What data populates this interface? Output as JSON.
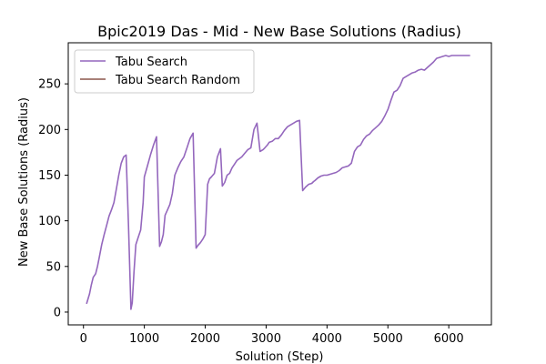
{
  "chart_data": {
    "type": "line",
    "title": "Bpic2019 Das - Mid - New Base Solutions (Radius)",
    "xlabel": "Solution (Step)",
    "ylabel": "New Base Solutions (Radius)",
    "xlim": [
      -250,
      6700
    ],
    "ylim": [
      -14,
      295
    ],
    "xticks": [
      0,
      1000,
      2000,
      3000,
      4000,
      5000,
      6000
    ],
    "yticks": [
      0,
      50,
      100,
      150,
      200,
      250
    ],
    "grid": false,
    "legend_position": "upper-left",
    "series": [
      {
        "name": "Tabu Search",
        "color": "#9467bd",
        "x": [
          50,
          100,
          130,
          160,
          200,
          230,
          260,
          300,
          340,
          380,
          420,
          460,
          500,
          540,
          580,
          620,
          660,
          700,
          740,
          780,
          800,
          830,
          860,
          900,
          940,
          980,
          1000,
          1050,
          1100,
          1150,
          1200,
          1250,
          1280,
          1310,
          1340,
          1380,
          1420,
          1460,
          1500,
          1550,
          1600,
          1650,
          1700,
          1750,
          1800,
          1850,
          1880,
          1920,
          1960,
          2000,
          2040,
          2070,
          2100,
          2150,
          2200,
          2250,
          2280,
          2320,
          2360,
          2400,
          2440,
          2480,
          2520,
          2560,
          2600,
          2650,
          2700,
          2750,
          2800,
          2850,
          2900,
          2950,
          2980,
          3020,
          3050,
          3100,
          3150,
          3200,
          3250,
          3300,
          3350,
          3400,
          3450,
          3500,
          3550,
          3600,
          3650,
          3700,
          3750,
          3780,
          3800,
          3850,
          3900,
          3950,
          4000,
          4050,
          4100,
          4150,
          4200,
          4250,
          4300,
          4350,
          4400,
          4450,
          4500,
          4550,
          4600,
          4650,
          4700,
          4750,
          4800,
          4850,
          4900,
          4950,
          5000,
          5050,
          5100,
          5150,
          5200,
          5250,
          5300,
          5350,
          5400,
          5450,
          5500,
          5550,
          5600,
          5650,
          5700,
          5750,
          5800,
          5850,
          5900,
          5950,
          6000,
          6050,
          6100,
          6150,
          6200,
          6250,
          6300,
          6350
        ],
        "y": [
          9,
          20,
          30,
          38,
          42,
          50,
          60,
          74,
          85,
          95,
          105,
          112,
          120,
          135,
          150,
          163,
          170,
          172,
          95,
          3,
          10,
          45,
          74,
          82,
          90,
          120,
          148,
          160,
          172,
          183,
          192,
          72,
          77,
          85,
          106,
          112,
          118,
          130,
          150,
          158,
          165,
          170,
          180,
          190,
          196,
          70,
          73,
          76,
          80,
          85,
          140,
          146,
          148,
          152,
          170,
          179,
          138,
          142,
          150,
          152,
          158,
          162,
          166,
          168,
          170,
          174,
          178,
          180,
          200,
          207,
          176,
          178,
          180,
          183,
          186,
          187,
          190,
          190,
          194,
          199,
          203,
          205,
          207,
          209,
          210,
          133,
          137,
          140,
          141,
          143,
          144,
          147,
          149,
          150,
          150,
          151,
          152,
          153,
          155,
          158,
          159,
          160,
          163,
          176,
          181,
          183,
          189,
          193,
          195,
          199,
          202,
          205,
          209,
          215,
          222,
          232,
          241,
          243,
          248,
          256,
          258,
          260,
          262,
          263,
          265,
          266,
          265,
          268,
          271,
          274,
          278,
          279,
          280,
          281,
          280,
          281,
          281,
          281,
          281,
          281,
          281,
          281
        ]
      },
      {
        "name": "Tabu Search Random",
        "color": "#8c564b",
        "x": [],
        "y": []
      }
    ]
  }
}
